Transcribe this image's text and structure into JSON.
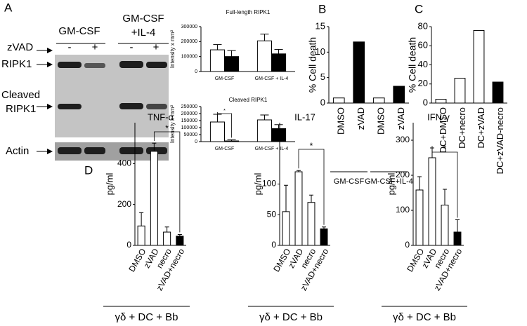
{
  "panel_labels": [
    "A",
    "B",
    "C",
    "D"
  ],
  "blot": {
    "groups": [
      [
        "GM-CSF"
      ],
      [
        "GM-CSF",
        "+IL-4"
      ]
    ],
    "treatment": "zVAD",
    "lane_signs": [
      "-",
      "+",
      "-",
      "+"
    ],
    "rows": [
      [
        "RIPK1"
      ],
      [
        "Cleaved",
        "RIPK1"
      ],
      [
        "Actin"
      ]
    ]
  },
  "chart_data": [
    {
      "type": "bar",
      "title": "Full-length RIPK1",
      "ylabel": "Intensity x mm²",
      "categories": [
        "GM-CSF",
        "GM-CSF + IL-4"
      ],
      "series": [
        {
          "color": "#ffffff",
          "values": [
            145000,
            205000
          ],
          "errors": [
            35000,
            45000
          ]
        },
        {
          "color": "#000000",
          "values": [
            100000,
            118000
          ],
          "errors": [
            40000,
            30000
          ]
        }
      ],
      "ylim": [
        0,
        300000
      ],
      "yticks": [
        0,
        100000,
        200000,
        300000
      ]
    },
    {
      "type": "bar",
      "title": "Cleaved RIPK1",
      "ylabel": "Intensity x mm²",
      "annotation": "*",
      "categories": [
        "GM-CSF",
        "GM-CSF + IL-4"
      ],
      "series": [
        {
          "color": "#ffffff",
          "values": [
            140000,
            155000
          ],
          "errors": [
            55000,
            35000
          ]
        },
        {
          "color": "#000000",
          "values": [
            5000,
            93000
          ],
          "errors": [
            8000,
            28000
          ]
        }
      ],
      "ylim": [
        0,
        250000
      ],
      "yticks": [
        0,
        50000,
        100000,
        150000,
        200000,
        250000
      ]
    },
    {
      "type": "bar",
      "ylabel": "% Cell death",
      "categories": [
        "DMSO",
        "zVAD",
        "DMSO",
        "zVAD"
      ],
      "values": [
        1,
        12,
        1,
        3.3
      ],
      "colors": [
        "#ffffff",
        "#000000",
        "#ffffff",
        "#000000"
      ],
      "groups": [
        "GM-CSF",
        "GM-CSF+IL-4"
      ],
      "ylim": [
        0,
        15
      ],
      "yticks": [
        0,
        5,
        10,
        15
      ]
    },
    {
      "type": "bar",
      "ylabel": "% Cell death",
      "categories": [
        "DC+DMSO",
        "DC+necro",
        "DC+zVAD",
        "DC+zVAD-necro"
      ],
      "values": [
        4,
        26,
        76,
        22
      ],
      "colors": [
        "#ffffff",
        "#ffffff",
        "#ffffff",
        "#000000"
      ],
      "ylim": [
        0,
        80
      ],
      "yticks": [
        0,
        20,
        40,
        60,
        80
      ]
    },
    {
      "type": "bar",
      "title": "TNF-α",
      "ylabel": "pg/ml",
      "xlabel": "γδ + DC + Bb",
      "annotation": "*",
      "categories": [
        "DMSO",
        "zVAD",
        "necro",
        "zVAD+necro"
      ],
      "values": [
        95,
        460,
        65,
        45
      ],
      "errors": [
        65,
        40,
        25,
        8
      ],
      "colors": [
        "#ffffff",
        "#ffffff",
        "#ffffff",
        "#000000"
      ],
      "ylim": [
        0,
        600
      ],
      "yticks": [
        0,
        200,
        400
      ]
    },
    {
      "type": "bar",
      "title": "IL-17",
      "ylabel": "pg/ml",
      "xlabel": "γδ + DC + Bb",
      "annotation": "*",
      "categories": [
        "DMSO",
        "zVAD",
        "necro",
        "zVAD+necro"
      ],
      "values": [
        55,
        120,
        70,
        27
      ],
      "errors": [
        43,
        2,
        12,
        3
      ],
      "colors": [
        "#ffffff",
        "#ffffff",
        "#ffffff",
        "#000000"
      ],
      "ylim": [
        0,
        200
      ],
      "yticks": [
        0,
        50,
        100
      ]
    },
    {
      "type": "bar",
      "title": "IFN-γ",
      "ylabel": "pg/ml",
      "xlabel": "γδ + DC + Bb",
      "annotation": "*",
      "categories": [
        "DMSO",
        "zVAD",
        "necro",
        "zVAD+necro"
      ],
      "values": [
        158,
        250,
        115,
        38
      ],
      "errors": [
        38,
        28,
        45,
        35
      ],
      "colors": [
        "#ffffff",
        "#ffffff",
        "#ffffff",
        "#000000"
      ],
      "ylim": [
        0,
        350
      ],
      "yticks": [
        0,
        100,
        200,
        300
      ]
    }
  ]
}
